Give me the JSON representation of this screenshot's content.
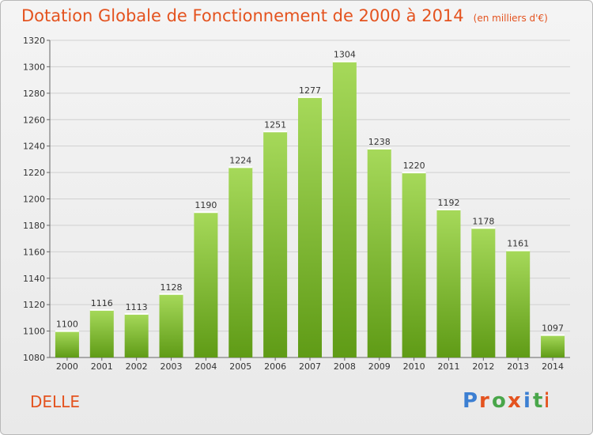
{
  "header": {
    "title": "Dotation Globale de Fonctionnement de 2000 à 2014",
    "unit_note": "(en milliers d'€)"
  },
  "commune": "DELLE",
  "brand": {
    "name": "Proxiti",
    "letters": [
      "P",
      "r",
      "o",
      "x",
      "i",
      "t",
      "i"
    ],
    "colors": [
      "#3c7fd2",
      "#e4531f",
      "#49a64a",
      "#e4531f",
      "#3c7fd2",
      "#49a64a",
      "#e4531f"
    ]
  },
  "colors": {
    "title": "#e4531f",
    "bar_top": "#a6d95a",
    "bar_bottom": "#5f9b16",
    "grid": "#d0d0d0",
    "axis_text": "#333333"
  },
  "chart_data": {
    "type": "bar",
    "title": "Dotation Globale de Fonctionnement de 2000 à 2014",
    "subtitle": "(en milliers d'€)",
    "xlabel": "",
    "ylabel": "",
    "categories": [
      "2000",
      "2001",
      "2002",
      "2003",
      "2004",
      "2005",
      "2006",
      "2007",
      "2008",
      "2009",
      "2010",
      "2011",
      "2012",
      "2013",
      "2014"
    ],
    "values": [
      1100,
      1116,
      1113,
      1128,
      1190,
      1224,
      1251,
      1277,
      1304,
      1238,
      1220,
      1192,
      1178,
      1161,
      1097
    ],
    "ylim": [
      1080,
      1320
    ],
    "yticks": [
      1080,
      1100,
      1120,
      1140,
      1160,
      1180,
      1200,
      1220,
      1240,
      1260,
      1280,
      1300,
      1320
    ],
    "grid": true,
    "data_labels": true
  }
}
